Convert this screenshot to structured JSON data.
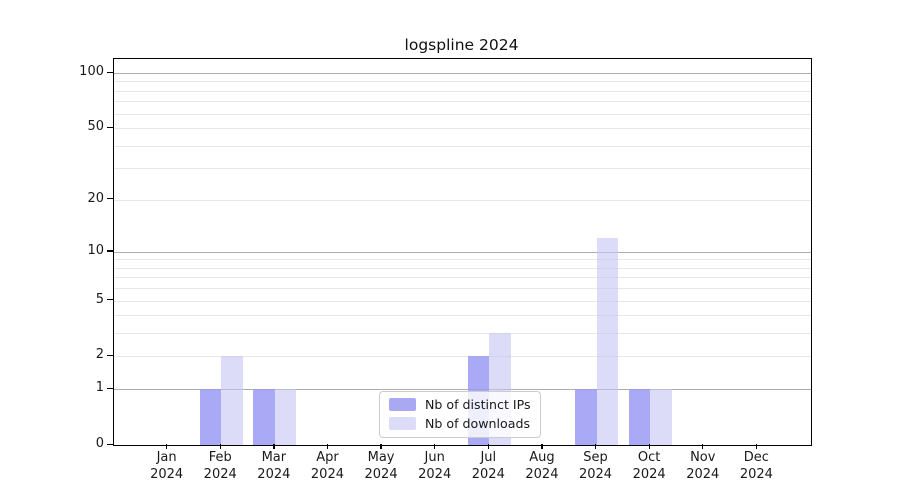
{
  "chart_data": {
    "type": "bar",
    "title": "logspline 2024",
    "x": {
      "months": [
        "Jan",
        "Feb",
        "Mar",
        "Apr",
        "May",
        "Jun",
        "Jul",
        "Aug",
        "Sep",
        "Oct",
        "Nov",
        "Dec"
      ],
      "year": "2024"
    },
    "y": {
      "tick_labels": [
        "0",
        "1",
        "2",
        "5",
        "10",
        "20",
        "50",
        "100"
      ],
      "tick_values": [
        0,
        1,
        2,
        5,
        10,
        20,
        50,
        100
      ],
      "minor_gridlines": [
        2,
        3,
        4,
        5,
        6,
        7,
        8,
        9,
        20,
        30,
        40,
        50,
        60,
        70,
        80,
        90
      ],
      "major_gridlines": [
        1,
        10,
        100
      ],
      "scale": "log1p",
      "range": [
        0,
        120
      ],
      "grid": "on"
    },
    "series": [
      {
        "name": "Nb of distinct IPs",
        "legend_color": "#a9a9f3",
        "bar_fill": "rgba(154,154,243,0.85)",
        "values": [
          0,
          1,
          1,
          0,
          0,
          0,
          2,
          0,
          1,
          1,
          0,
          0
        ]
      },
      {
        "name": "Nb of downloads",
        "legend_color": "#dcdcf9",
        "bar_fill": "rgba(197,197,245,0.6)",
        "values": [
          0,
          2,
          1,
          0,
          0,
          0,
          3,
          0,
          12,
          1,
          0,
          0
        ]
      }
    ],
    "legend_position": "lower center inside plot"
  },
  "colors": {
    "axis": "#000000",
    "grid_minor": "#e7e7e7",
    "grid_major": "#adadad",
    "text": "#1a1a1a",
    "legend_border": "#cccccc",
    "legend_background": "rgba(255,255,255,0.8)",
    "background": "#ffffff"
  }
}
